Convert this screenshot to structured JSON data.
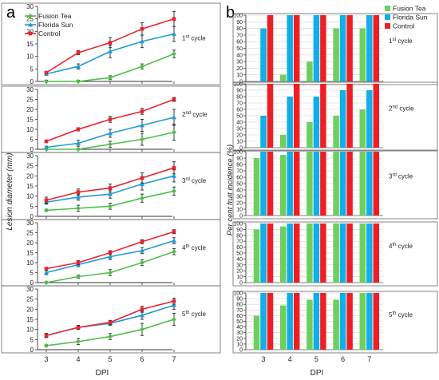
{
  "chart_data": [
    {
      "panel_label": "a",
      "type": "line",
      "x": [
        3,
        4,
        5,
        6,
        7
      ],
      "xlabel": "DPI",
      "ylabel": "Lesion diameter (mm)",
      "ylim": [
        0,
        30
      ],
      "yticks": [
        0,
        5,
        10,
        15,
        20,
        25,
        30
      ],
      "legend": {
        "placement": "top-left",
        "entries": [
          {
            "name": "Fusion Tea",
            "color": "#4fbf4a",
            "marker": "diamond"
          },
          {
            "name": "Florida Sun",
            "color": "#1f9bd7",
            "marker": "triangle"
          },
          {
            "name": "Control",
            "color": "#e8252d",
            "marker": "square"
          }
        ]
      },
      "cycles": [
        {
          "label_num": "1",
          "label_sup": "st",
          "label_rest": " cycle",
          "series": [
            {
              "name": "Fusion Tea",
              "values": [
                0,
                0,
                1.5,
                6,
                11
              ],
              "err": [
                0.5,
                0.5,
                0.8,
                1,
                1.5
              ]
            },
            {
              "name": "Florida Sun",
              "values": [
                3,
                6,
                12,
                16,
                19
              ],
              "err": [
                0.5,
                1,
                2.5,
                2.5,
                3
              ]
            },
            {
              "name": "Control",
              "values": [
                3.5,
                11.5,
                15.5,
                21,
                25
              ],
              "err": [
                0.5,
                0.8,
                2,
                2.5,
                3
              ]
            }
          ]
        },
        {
          "label_num": "2",
          "label_sup": "nd",
          "label_rest": " cycle",
          "series": [
            {
              "name": "Fusion Tea",
              "values": [
                0,
                0,
                2.5,
                5,
                8.5
              ],
              "err": [
                0.5,
                0.5,
                1.5,
                3,
                4
              ]
            },
            {
              "name": "Florida Sun",
              "values": [
                1,
                3,
                8,
                12,
                16
              ],
              "err": [
                0.5,
                1.5,
                2,
                3,
                4
              ]
            },
            {
              "name": "Control",
              "values": [
                4,
                10,
                15,
                19,
                25
              ],
              "err": [
                0.5,
                0.8,
                1.5,
                1.5,
                1
              ]
            }
          ]
        },
        {
          "label_num": "3",
          "label_sup": "rd",
          "label_rest": " cycle",
          "series": [
            {
              "name": "Fusion Tea",
              "values": [
                3,
                4,
                5,
                9,
                12.5
              ],
              "err": [
                0.5,
                1.5,
                1.5,
                2,
                2
              ]
            },
            {
              "name": "Florida Sun",
              "values": [
                7,
                9.5,
                11,
                16,
                20
              ],
              "err": [
                1,
                1.5,
                2,
                3,
                3
              ]
            },
            {
              "name": "Control",
              "values": [
                8,
                12,
                14,
                19,
                24
              ],
              "err": [
                1.5,
                1.5,
                2,
                2.5,
                3
              ]
            }
          ]
        },
        {
          "label_num": "4",
          "label_sup": "th",
          "label_rest": " cycle",
          "series": [
            {
              "name": "Fusion Tea",
              "values": [
                0,
                3,
                5,
                10,
                15.5
              ],
              "err": [
                0.5,
                0.8,
                1.5,
                1.5,
                1.5
              ]
            },
            {
              "name": "Florida Sun",
              "values": [
                5,
                9,
                13,
                16,
                21
              ],
              "err": [
                1,
                1,
                1.5,
                1.5,
                1.5
              ]
            },
            {
              "name": "Control",
              "values": [
                7,
                10,
                15,
                20.5,
                25.5
              ],
              "err": [
                0.5,
                1,
                1,
                1,
                1
              ]
            }
          ]
        },
        {
          "label_num": "5",
          "label_sup": "th",
          "label_rest": " cycle",
          "series": [
            {
              "name": "Fusion Tea",
              "values": [
                2,
                4,
                6.5,
                10,
                15
              ],
              "err": [
                0.5,
                1.5,
                1.5,
                3,
                3
              ]
            },
            {
              "name": "Florida Sun",
              "values": [
                7,
                11,
                13,
                17,
                22
              ],
              "err": [
                1,
                1,
                1,
                2,
                2
              ]
            },
            {
              "name": "Control",
              "values": [
                7,
                11,
                13.5,
                20,
                24
              ],
              "err": [
                1,
                1,
                1,
                1.5,
                1.5
              ]
            }
          ]
        }
      ]
    },
    {
      "panel_label": "b",
      "type": "bar",
      "categories": [
        "3",
        "4",
        "5",
        "6",
        "7"
      ],
      "xlabel": "DPI",
      "ylabel": "Per cent fruit incidence (%)",
      "ylim": [
        0,
        100
      ],
      "yticks": [
        0,
        10,
        20,
        30,
        40,
        50,
        60,
        70,
        80,
        90,
        100
      ],
      "legend": {
        "placement": "top-right",
        "entries": [
          {
            "name": "Fusion Tea",
            "color": "#6dcf5e"
          },
          {
            "name": "Florida Sun",
            "color": "#11aee8"
          },
          {
            "name": "Control",
            "color": "#ee1f24"
          }
        ]
      },
      "cycles": [
        {
          "label_num": "1",
          "label_sup": "st",
          "label_rest": " cycle",
          "series": [
            {
              "name": "Fusion Tea",
              "values": [
                0,
                10,
                30,
                80,
                80
              ]
            },
            {
              "name": "Florida Sun",
              "values": [
                80,
                100,
                100,
                100,
                100
              ]
            },
            {
              "name": "Control",
              "values": [
                100,
                100,
                100,
                100,
                100
              ]
            }
          ]
        },
        {
          "label_num": "2",
          "label_sup": "nd",
          "label_rest": " cycle",
          "series": [
            {
              "name": "Fusion Tea",
              "values": [
                0,
                20,
                40,
                50,
                60
              ]
            },
            {
              "name": "Florida Sun",
              "values": [
                50,
                80,
                80,
                90,
                90
              ]
            },
            {
              "name": "Control",
              "values": [
                100,
                100,
                100,
                100,
                100
              ]
            }
          ]
        },
        {
          "label_num": "3",
          "label_sup": "rd",
          "label_rest": " cycle",
          "series": [
            {
              "name": "Fusion Tea",
              "values": [
                90,
                95,
                100,
                100,
                100
              ]
            },
            {
              "name": "Florida Sun",
              "values": [
                100,
                100,
                100,
                100,
                100
              ]
            },
            {
              "name": "Control",
              "values": [
                100,
                100,
                100,
                100,
                100
              ]
            }
          ]
        },
        {
          "label_num": "4",
          "label_sup": "th",
          "label_rest": " cycle",
          "series": [
            {
              "name": "Fusion Tea",
              "values": [
                90,
                95,
                100,
                100,
                100
              ]
            },
            {
              "name": "Florida Sun",
              "values": [
                100,
                100,
                100,
                100,
                100
              ]
            },
            {
              "name": "Control",
              "values": [
                100,
                100,
                100,
                100,
                100
              ]
            }
          ]
        },
        {
          "label_num": "5",
          "label_sup": "th",
          "label_rest": " cycle",
          "series": [
            {
              "name": "Fusion Tea",
              "values": [
                60,
                78,
                88,
                88,
                100
              ]
            },
            {
              "name": "Florida Sun",
              "values": [
                100,
                100,
                100,
                100,
                100
              ]
            },
            {
              "name": "Control",
              "values": [
                100,
                100,
                100,
                100,
                100
              ]
            }
          ]
        }
      ]
    }
  ]
}
